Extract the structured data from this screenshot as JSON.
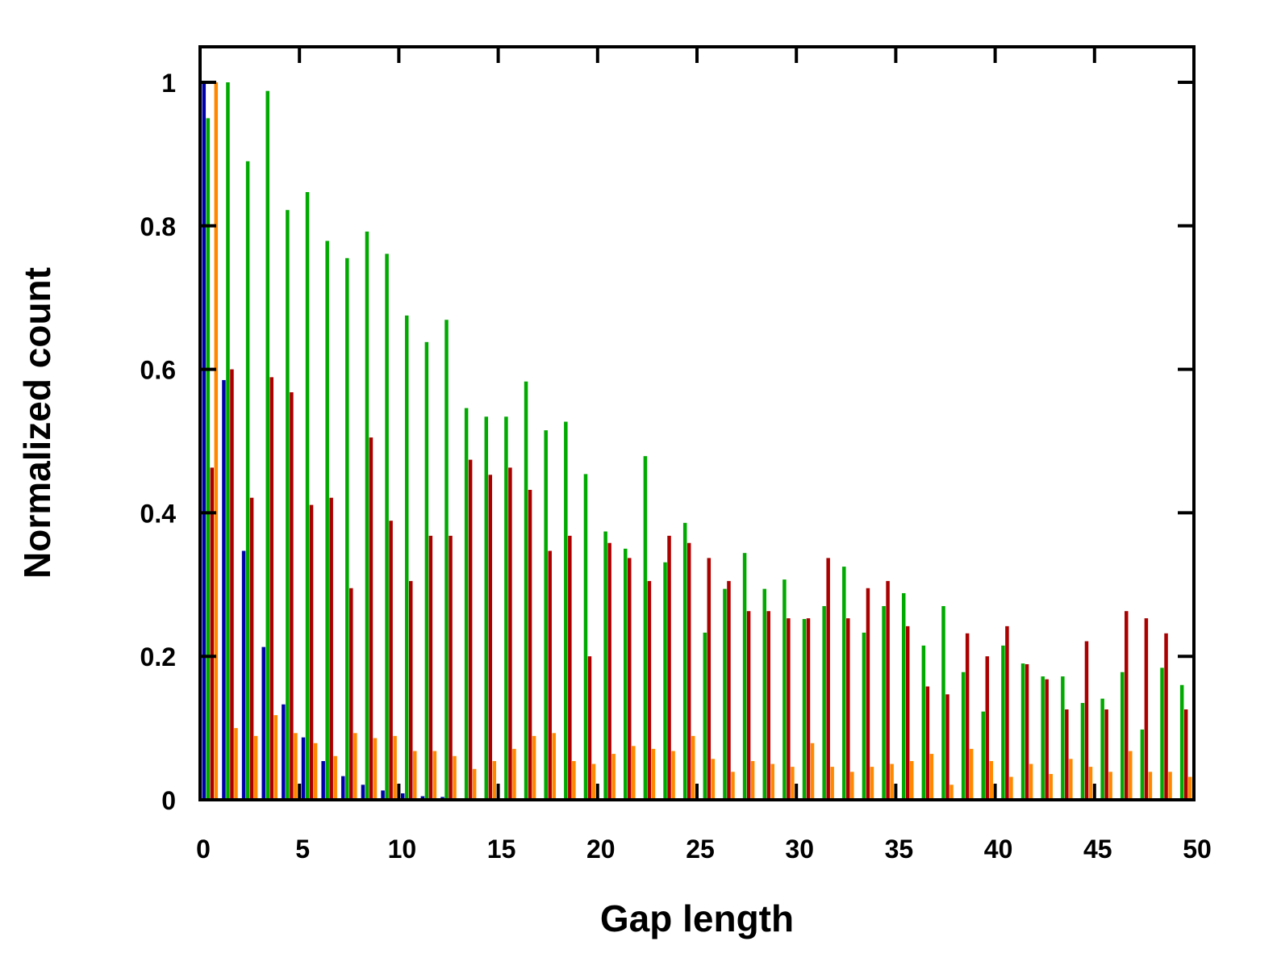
{
  "chart_data": {
    "type": "bar",
    "title": "",
    "xlabel": "Gap length",
    "ylabel": "Normalized count",
    "xlim": [
      0,
      50
    ],
    "ylim": [
      0,
      1.05
    ],
    "xticks": [
      0,
      5,
      10,
      15,
      20,
      25,
      30,
      35,
      40,
      45,
      50
    ],
    "xtick_labels": [
      "0",
      "5",
      "10",
      "15",
      "20",
      "25",
      "30",
      "35",
      "40",
      "45",
      "50"
    ],
    "yticks": [
      0,
      0.2,
      0.4,
      0.6,
      0.8,
      1
    ],
    "ytick_labels": [
      "0",
      "0.2",
      "0.4",
      "0.6",
      "0.8",
      "1"
    ],
    "grid": false,
    "legend": "none",
    "x": [
      1,
      2,
      3,
      4,
      5,
      6,
      7,
      8,
      9,
      10,
      11,
      12,
      13,
      14,
      15,
      16,
      17,
      18,
      19,
      20,
      21,
      22,
      23,
      24,
      25,
      26,
      27,
      28,
      29,
      30,
      31,
      32,
      33,
      34,
      35,
      36,
      37,
      38,
      39,
      40,
      41,
      42,
      43,
      44,
      45,
      46,
      47,
      48,
      49,
      50
    ],
    "series": [
      {
        "color": "#0000aa",
        "values": [
          1.0,
          0.585,
          0.347,
          0.213,
          0.133,
          0.087,
          0.054,
          0.033,
          0.021,
          0.013,
          0.009,
          0.005,
          0.004,
          0.002,
          0.001,
          0,
          0,
          0,
          0,
          0,
          0,
          0,
          0,
          0,
          0,
          0,
          0,
          0,
          0,
          0,
          0,
          0,
          0,
          0,
          0,
          0,
          0,
          0,
          0,
          0,
          0,
          0,
          0,
          0,
          0,
          0,
          0,
          0,
          0,
          0
        ]
      },
      {
        "color": "#00aa00",
        "values": [
          0.95,
          1.0,
          0.89,
          0.988,
          0.822,
          0.847,
          0.779,
          0.755,
          0.792,
          0.761,
          0.675,
          0.638,
          0.669,
          0.546,
          0.534,
          0.534,
          0.583,
          0.515,
          0.527,
          0.454,
          0.374,
          0.35,
          0.479,
          0.331,
          0.386,
          0.233,
          0.294,
          0.344,
          0.294,
          0.307,
          0.252,
          0.27,
          0.325,
          0.233,
          0.27,
          0.288,
          0.215,
          0.27,
          0.178,
          0.123,
          0.215,
          0.19,
          0.172,
          0.172,
          0.135,
          0.141,
          0.178,
          0.098,
          0.184,
          0.16
        ]
      },
      {
        "color": "#aa0000",
        "values": [
          0.463,
          0.6,
          0.421,
          0.589,
          0.568,
          0.411,
          0.421,
          0.295,
          0.505,
          0.389,
          0.305,
          0.368,
          0.368,
          0.474,
          0.453,
          0.463,
          0.432,
          0.347,
          0.368,
          0.2,
          0.358,
          0.337,
          0.305,
          0.368,
          0.358,
          0.337,
          0.305,
          0.263,
          0.263,
          0.253,
          0.253,
          0.337,
          0.253,
          0.295,
          0.305,
          0.242,
          0.158,
          0.147,
          0.232,
          0.2,
          0.242,
          0.189,
          0.168,
          0.126,
          0.221,
          0.126,
          0.263,
          0.253,
          0.232,
          0.126
        ]
      },
      {
        "color": "#ff8800",
        "values": [
          1.0,
          0.1,
          0.089,
          0.118,
          0.093,
          0.079,
          0.061,
          0.093,
          0.086,
          0.089,
          0.068,
          0.068,
          0.061,
          0.043,
          0.054,
          0.071,
          0.089,
          0.093,
          0.054,
          0.05,
          0.064,
          0.075,
          0.071,
          0.068,
          0.089,
          0.057,
          0.039,
          0.054,
          0.05,
          0.046,
          0.079,
          0.046,
          0.039,
          0.046,
          0.05,
          0.054,
          0.064,
          0.021,
          0.071,
          0.054,
          0.032,
          0.05,
          0.036,
          0.057,
          0.046,
          0.039,
          0.068,
          0.039,
          0.039,
          0.032
        ]
      }
    ]
  }
}
